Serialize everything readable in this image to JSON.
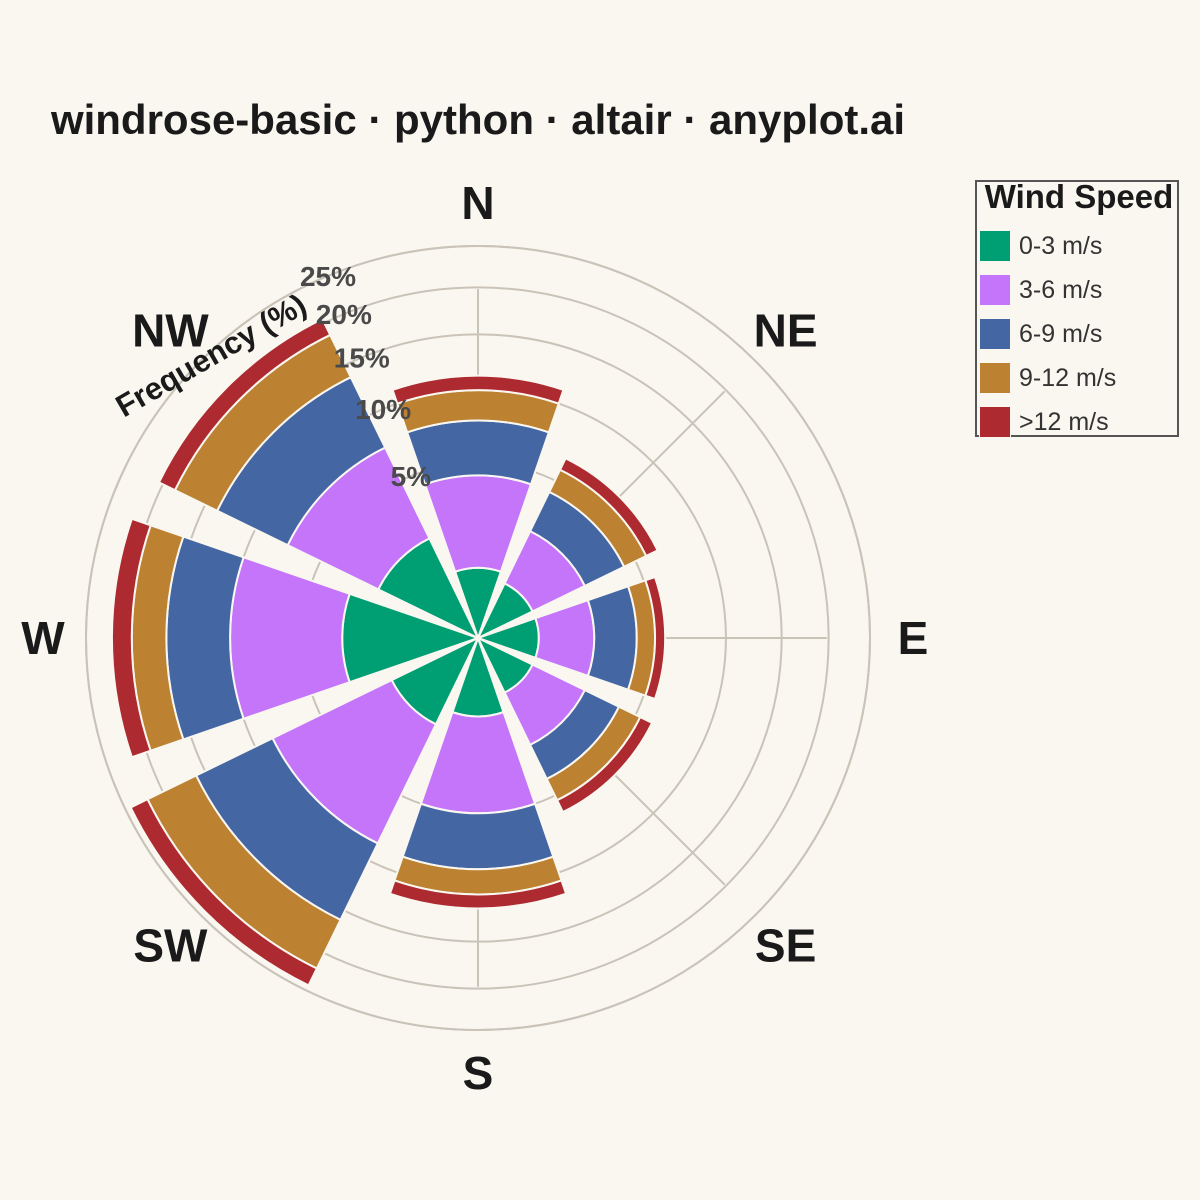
{
  "title": "windrose-basic · python · altair · anyplot.ai",
  "chart_data": {
    "type": "bar",
    "subtype": "windrose (stacked polar bar)",
    "title": "windrose-basic · python · altair · anyplot.ai",
    "radial_axis_label": "Frequency (%)",
    "radial_ticks": [
      "5%",
      "10%",
      "15%",
      "20%",
      "25%"
    ],
    "radial_tick_values": [
      5,
      10,
      15,
      20,
      25
    ],
    "rmax": 25,
    "categories": [
      "N",
      "NE",
      "E",
      "SE",
      "S",
      "SW",
      "W",
      "NW"
    ],
    "series": [
      {
        "name": "0-3 m/s",
        "color": "#009E73",
        "values": [
          0.8,
          0.6,
          0.6,
          0.6,
          1.0,
          1.5,
          3.0,
          2.0
        ]
      },
      {
        "name": "3-6 m/s",
        "color": "#C475FA",
        "values": [
          3.5,
          1.7,
          1.6,
          1.7,
          4.0,
          7.0,
          7.0,
          5.3
        ]
      },
      {
        "name": "6-9 m/s",
        "color": "#4467A3",
        "values": [
          3.4,
          2.0,
          1.9,
          1.7,
          3.7,
          7.5,
          5.8,
          6.4
        ]
      },
      {
        "name": "9-12 m/s",
        "color": "#BC8232",
        "values": [
          2.3,
          1.4,
          1.0,
          1.3,
          2.0,
          6.0,
          3.7,
          4.8
        ]
      },
      {
        "name": ">12 m/s",
        "color": "#AD2A31",
        "values": [
          1.2,
          0.8,
          0.6,
          0.8,
          1.2,
          2.3,
          2.3,
          2.0
        ]
      }
    ],
    "grid": true,
    "legend_position": "right"
  },
  "legend": {
    "title": "Wind Speed",
    "items": [
      {
        "label": "0-3 m/s",
        "color": "#009E73"
      },
      {
        "label": "3-6 m/s",
        "color": "#C475FA"
      },
      {
        "label": "6-9 m/s",
        "color": "#4467A3"
      },
      {
        "label": "9-12 m/s",
        "color": "#BC8232"
      },
      {
        "label": ">12 m/s",
        "color": "#AD2A31"
      }
    ]
  }
}
